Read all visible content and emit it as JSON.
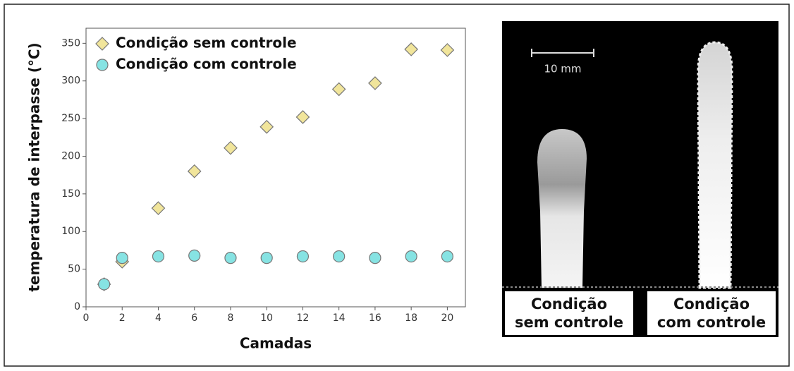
{
  "chart_data": {
    "type": "scatter",
    "y_label": "temperatura de interpasse (°C)",
    "x_label": "Camadas",
    "x": [
      1,
      2,
      4,
      6,
      8,
      10,
      12,
      14,
      16,
      18,
      20
    ],
    "series": [
      {
        "name": "Condição sem controle",
        "color": "#f1e59b",
        "marker": "diamond",
        "values": [
          30,
          60,
          131,
          180,
          211,
          239,
          252,
          289,
          297,
          342,
          341
        ]
      },
      {
        "name": "Condição com controle",
        "color": "#86e3e3",
        "marker": "circle",
        "values": [
          30,
          65,
          67,
          68,
          65,
          65,
          67,
          67,
          65,
          67,
          67
        ]
      }
    ],
    "xlim": [
      0,
      21
    ],
    "ylim": [
      0,
      370
    ],
    "xticks": [
      0,
      2,
      4,
      6,
      8,
      10,
      12,
      14,
      16,
      18,
      20
    ],
    "yticks": [
      0,
      50,
      100,
      150,
      200,
      250,
      300,
      350
    ],
    "legend": "upper-left"
  },
  "image": {
    "scale_bar": "10 mm",
    "labels": [
      [
        "Condição",
        "sem controle"
      ],
      [
        "Condição",
        "com controle"
      ]
    ]
  }
}
